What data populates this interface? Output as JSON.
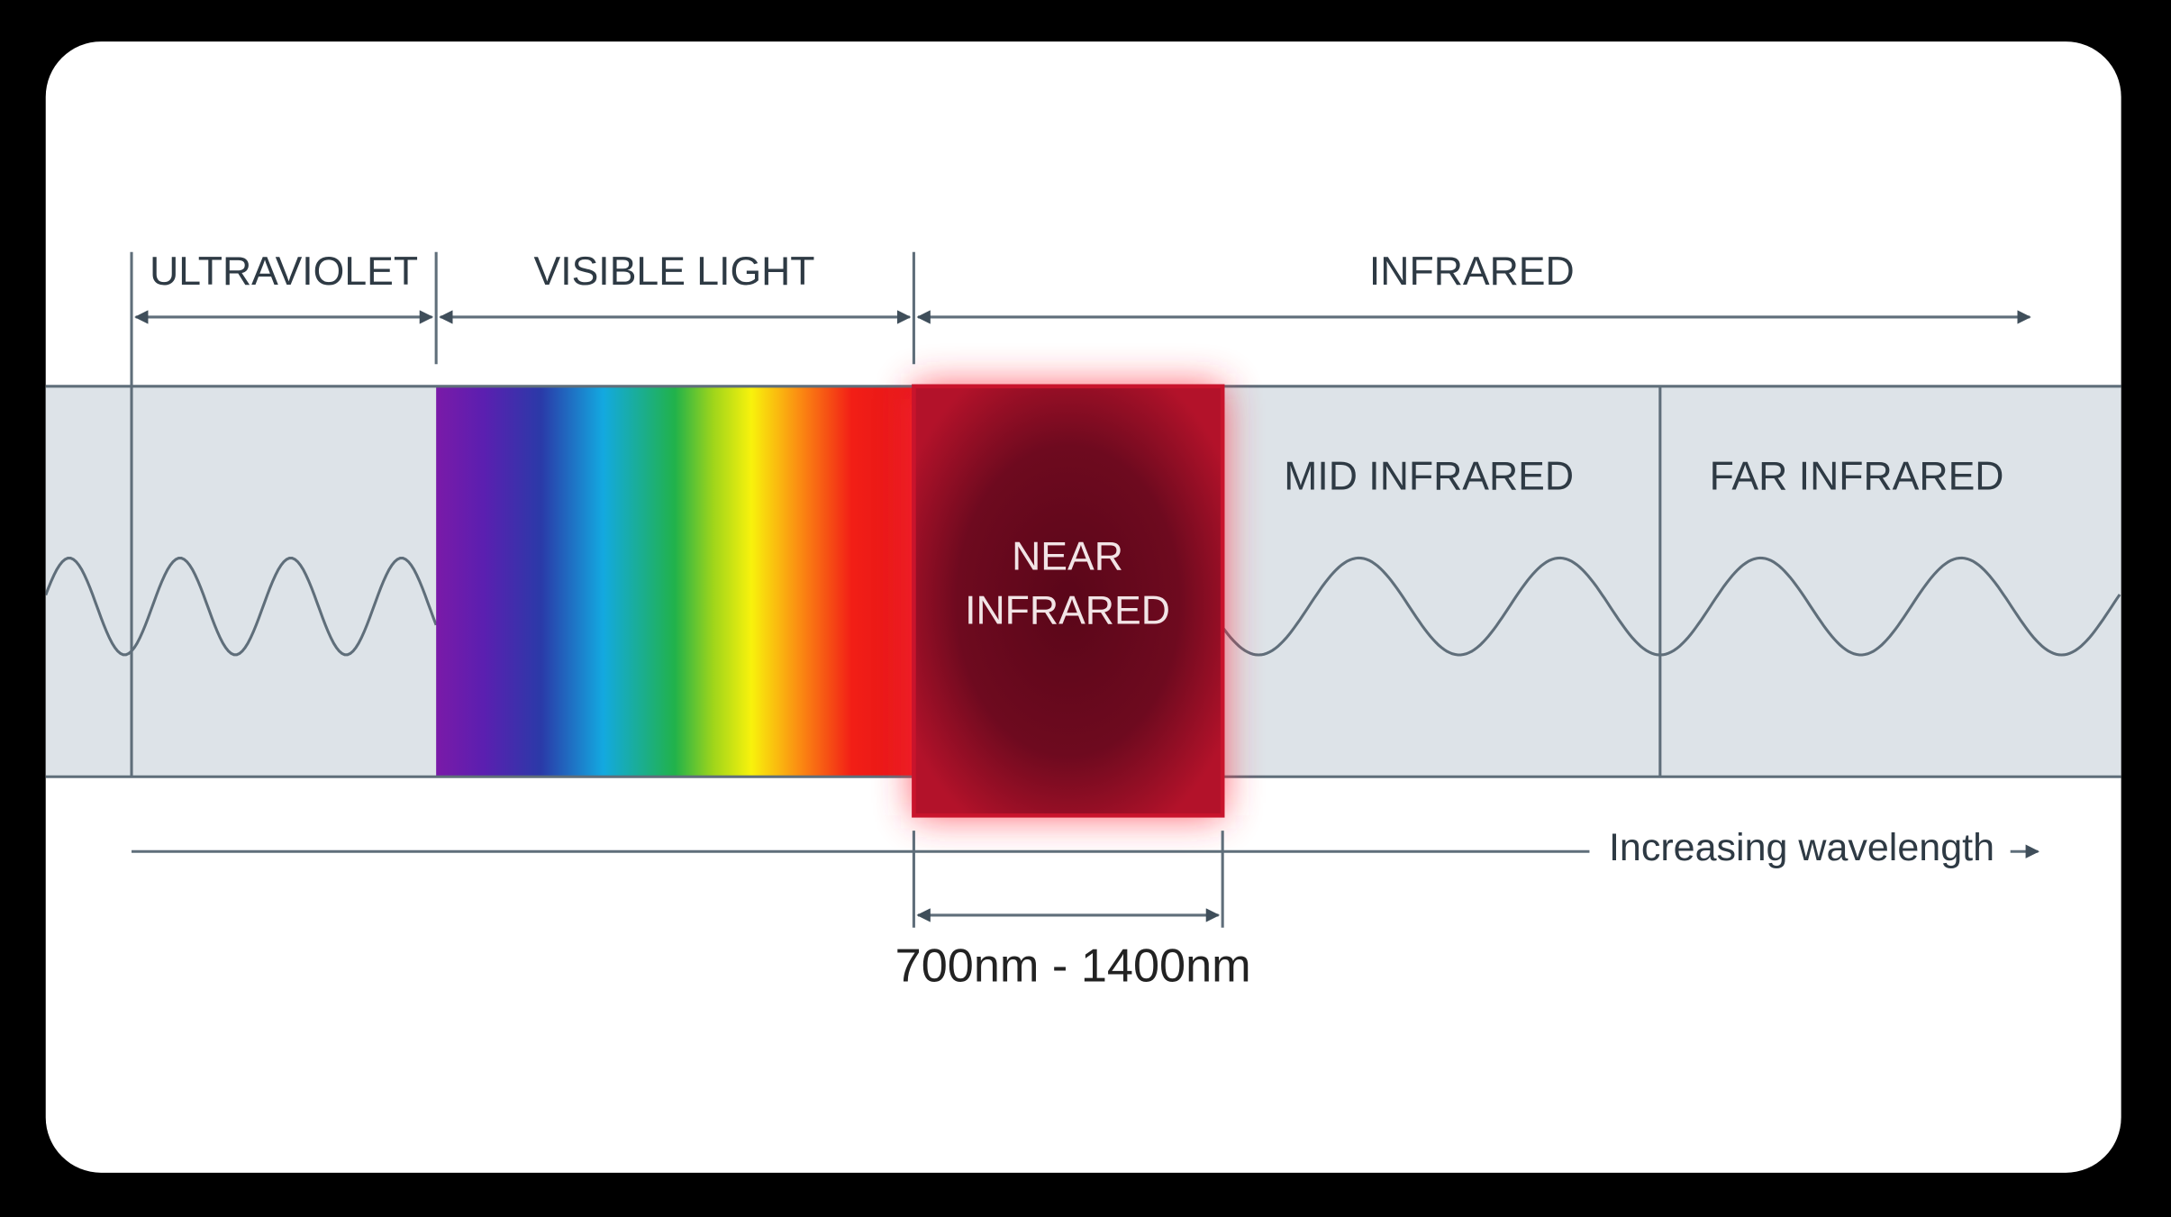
{
  "regions": {
    "ultraviolet": "ULTRAVIOLET",
    "visible": "VISIBLE LIGHT",
    "infrared": "INFRARED"
  },
  "bands": {
    "near_infrared": [
      "NEAR",
      "INFRARED"
    ],
    "mid_infrared": "MID INFRARED",
    "far_infrared": "FAR INFRARED"
  },
  "axis_label": "Increasing wavelength",
  "range_label": "700nm - 1400nm"
}
